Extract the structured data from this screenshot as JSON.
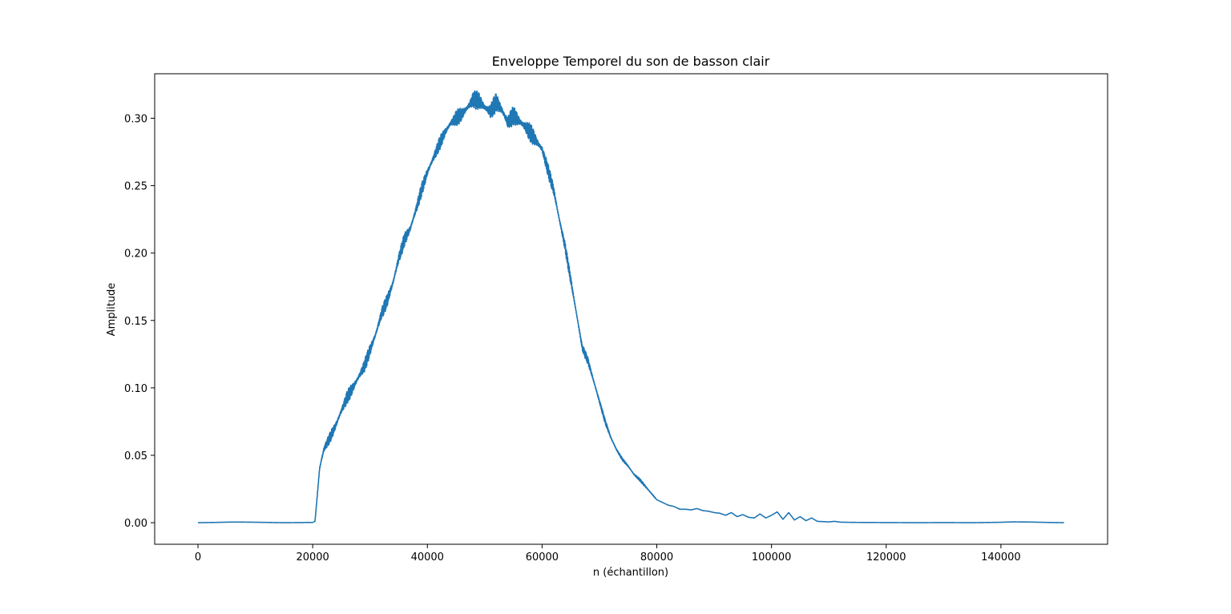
{
  "chart_data": {
    "type": "line",
    "title": "Enveloppe Temporel du son de basson clair",
    "xlabel": "n (échantillon)",
    "ylabel": "Amplitude",
    "xlim": [
      -7550,
      158600
    ],
    "ylim": [
      -0.016,
      0.333
    ],
    "xticks": [
      0,
      20000,
      40000,
      60000,
      80000,
      100000,
      120000,
      140000
    ],
    "yticks": [
      0.0,
      0.05,
      0.1,
      0.15,
      0.2,
      0.25,
      0.3
    ],
    "xtick_labels": [
      "0",
      "20000",
      "40000",
      "60000",
      "80000",
      "100000",
      "120000",
      "140000"
    ],
    "ytick_labels": [
      "0.00",
      "0.05",
      "0.10",
      "0.15",
      "0.20",
      "0.25",
      "0.30"
    ],
    "grid": false,
    "series": [
      {
        "color": "#1f77b4",
        "x": [
          0,
          3000,
          6000,
          9000,
          12000,
          15000,
          18000,
          20000,
          20400,
          20800,
          21200,
          21600,
          22000,
          23000,
          24000,
          25000,
          26000,
          27000,
          28000,
          29000,
          30000,
          31000,
          32000,
          33000,
          34000,
          35000,
          36000,
          37000,
          38000,
          39000,
          40000,
          41000,
          42000,
          43000,
          44000,
          45000,
          46000,
          47000,
          48000,
          49000,
          50000,
          51000,
          52000,
          53000,
          54000,
          55000,
          56000,
          57000,
          58000,
          59000,
          60000,
          61000,
          62000,
          63000,
          64000,
          65000,
          66000,
          67000,
          68000,
          69000,
          70000,
          71000,
          72000,
          73000,
          74000,
          75000,
          76000,
          77000,
          78000,
          79000,
          80000,
          81000,
          82000,
          83000,
          84000,
          85000,
          86000,
          87000,
          88000,
          89000,
          90000,
          91000,
          92000,
          93000,
          94000,
          95000,
          96000,
          97000,
          98000,
          99000,
          100000,
          101000,
          102000,
          103000,
          104000,
          105000,
          106000,
          107000,
          108000,
          109000,
          110000,
          111000,
          112000,
          113000,
          115000,
          120000,
          125000,
          130000,
          135000,
          140000,
          142000,
          145000,
          148000,
          151000
        ],
        "values": [
          0.0,
          0.0002,
          0.0005,
          0.0004,
          0.0002,
          0.0,
          0.0001,
          0.0002,
          0.001,
          0.02,
          0.04,
          0.048,
          0.055,
          0.063,
          0.072,
          0.083,
          0.093,
          0.1,
          0.108,
          0.116,
          0.128,
          0.14,
          0.155,
          0.165,
          0.178,
          0.196,
          0.21,
          0.218,
          0.232,
          0.247,
          0.26,
          0.27,
          0.28,
          0.289,
          0.296,
          0.3,
          0.303,
          0.308,
          0.314,
          0.313,
          0.308,
          0.305,
          0.312,
          0.306,
          0.297,
          0.302,
          0.298,
          0.294,
          0.289,
          0.283,
          0.277,
          0.262,
          0.247,
          0.225,
          0.205,
          0.18,
          0.155,
          0.13,
          0.12,
          0.105,
          0.09,
          0.075,
          0.063,
          0.054,
          0.047,
          0.042,
          0.036,
          0.032,
          0.027,
          0.022,
          0.017,
          0.015,
          0.013,
          0.012,
          0.01,
          0.01,
          0.0095,
          0.0105,
          0.009,
          0.0085,
          0.0075,
          0.007,
          0.0055,
          0.0075,
          0.0045,
          0.006,
          0.004,
          0.0035,
          0.0065,
          0.0035,
          0.0055,
          0.008,
          0.0025,
          0.0075,
          0.002,
          0.0045,
          0.0015,
          0.0035,
          0.001,
          0.0008,
          0.0006,
          0.001,
          0.0004,
          0.0003,
          0.0002,
          0.0001,
          0.0,
          0.0001,
          0.0,
          0.0003,
          0.0006,
          0.0005,
          0.0002,
          0.0
        ],
        "noise_band": [
          0.0,
          0.0,
          0.0,
          0.0,
          0.0,
          0.0,
          0.0,
          0.0,
          0.0,
          0.002,
          0.003,
          0.004,
          0.004,
          0.004,
          0.004,
          0.005,
          0.005,
          0.005,
          0.005,
          0.005,
          0.005,
          0.005,
          0.005,
          0.005,
          0.005,
          0.005,
          0.005,
          0.005,
          0.005,
          0.005,
          0.005,
          0.005,
          0.005,
          0.005,
          0.005,
          0.006,
          0.006,
          0.006,
          0.007,
          0.007,
          0.007,
          0.007,
          0.007,
          0.007,
          0.007,
          0.007,
          0.007,
          0.007,
          0.007,
          0.006,
          0.006,
          0.005,
          0.005,
          0.004,
          0.004,
          0.004,
          0.003,
          0.003,
          0.003,
          0.003,
          0.002,
          0.002,
          0.002,
          0.001,
          0.001,
          0.001,
          0.001,
          0.001,
          0.001,
          0.001,
          0.0,
          0.0,
          0.0,
          0.0,
          0.0,
          0.0,
          0.0,
          0.0,
          0.0,
          0.0,
          0.0,
          0.0,
          0.0,
          0.0,
          0.0,
          0.0,
          0.0,
          0.0,
          0.0,
          0.0,
          0.0,
          0.0,
          0.0,
          0.0,
          0.0,
          0.0,
          0.0,
          0.0,
          0.0,
          0.0,
          0.0,
          0.0,
          0.0,
          0.0,
          0.0,
          0.0,
          0.0,
          0.0,
          0.0,
          0.0,
          0.0,
          0.0,
          0.0,
          0.0
        ]
      }
    ]
  }
}
